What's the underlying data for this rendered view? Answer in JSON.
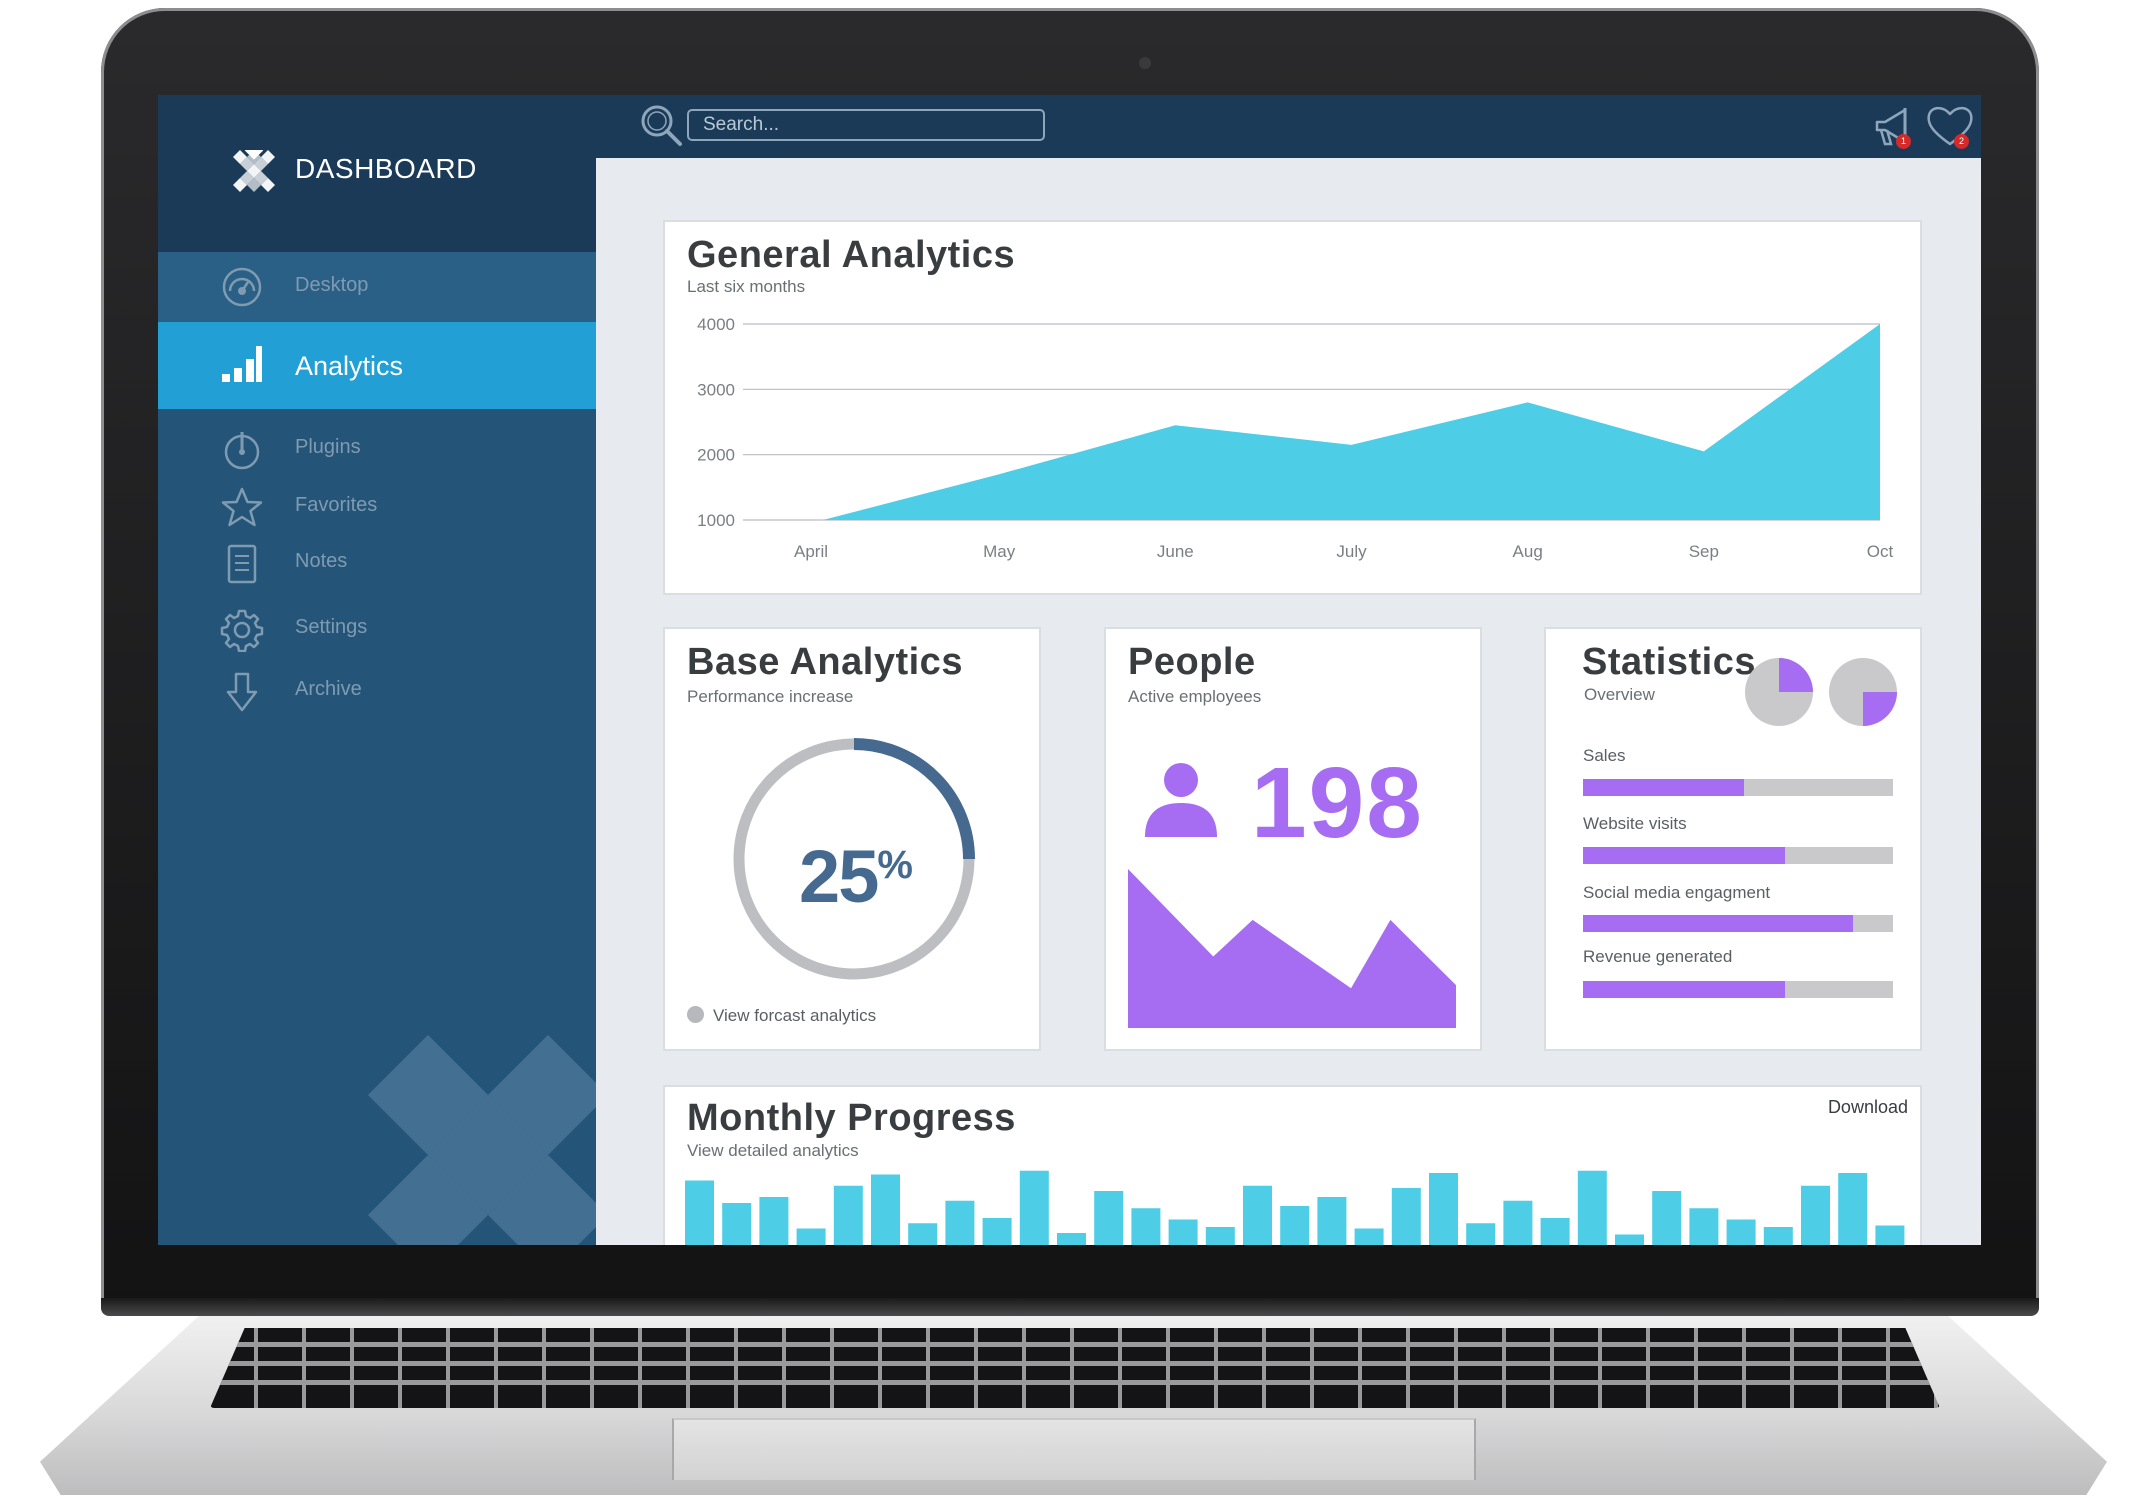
{
  "sidebar": {
    "brand": "DASHBOARD",
    "items": [
      {
        "label": "Desktop",
        "icon": "speedometer-icon"
      },
      {
        "label": "Analytics",
        "icon": "bar-chart-icon",
        "active": true
      },
      {
        "label": "Plugins",
        "icon": "power-icon"
      },
      {
        "label": "Favorites",
        "icon": "star-icon"
      },
      {
        "label": "Notes",
        "icon": "notes-icon"
      },
      {
        "label": "Settings",
        "icon": "gear-icon"
      },
      {
        "label": "Archive",
        "icon": "download-arrow-icon"
      }
    ]
  },
  "topbar": {
    "search_placeholder": "Search...",
    "notifications_count": "1",
    "favorites_count": "2"
  },
  "general": {
    "title": "General Analytics",
    "subtitle": "Last six months"
  },
  "base": {
    "title": "Base Analytics",
    "subtitle": "Performance increase",
    "value": "25",
    "unit": "%",
    "fraction": 0.25,
    "link": "View forcast analytics"
  },
  "people": {
    "title": "People",
    "subtitle": "Active employees",
    "count": "198"
  },
  "statistics": {
    "title": "Statistics",
    "subtitle": "Overview",
    "pie_fractions": [
      0.25,
      0.25
    ],
    "items": [
      {
        "label": "Sales",
        "value": 0.52
      },
      {
        "label": "Website visits",
        "value": 0.65
      },
      {
        "label": "Social media engagment",
        "value": 0.87
      },
      {
        "label": "Revenue generated",
        "value": 0.65
      }
    ]
  },
  "monthly": {
    "title": "Monthly Progress",
    "subtitle": "View detailed analytics",
    "download": "Download"
  },
  "colors": {
    "accent_blue": "#22a0d6",
    "area_blue": "#4ecde6",
    "purple": "#a66cf2",
    "ring": "#45698f"
  },
  "chart_data": [
    {
      "type": "area",
      "title": "General Analytics",
      "subtitle": "Last six months",
      "x": [
        "April",
        "May",
        "June",
        "July",
        "Aug",
        "Sep",
        "Oct"
      ],
      "values": [
        1000,
        1700,
        2450,
        2150,
        2800,
        2050,
        4000
      ],
      "yticks": [
        1000,
        2000,
        3000,
        4000
      ],
      "ylim": [
        1000,
        4000
      ],
      "grid": true
    },
    {
      "type": "area",
      "title": "People",
      "values": [
        1.0,
        0.45,
        0.68,
        0.25,
        0.68,
        0.27
      ]
    },
    {
      "type": "bar",
      "title": "Monthly Progress",
      "values": [
        0.82,
        0.52,
        0.6,
        0.18,
        0.75,
        0.9,
        0.25,
        0.55,
        0.32,
        0.95,
        0.12,
        0.68,
        0.45,
        0.3,
        0.2,
        0.75,
        0.48,
        0.6,
        0.18,
        0.72,
        0.92,
        0.25,
        0.55,
        0.32,
        0.95,
        0.1,
        0.68,
        0.45,
        0.3,
        0.2,
        0.75,
        0.92,
        0.22
      ]
    }
  ]
}
